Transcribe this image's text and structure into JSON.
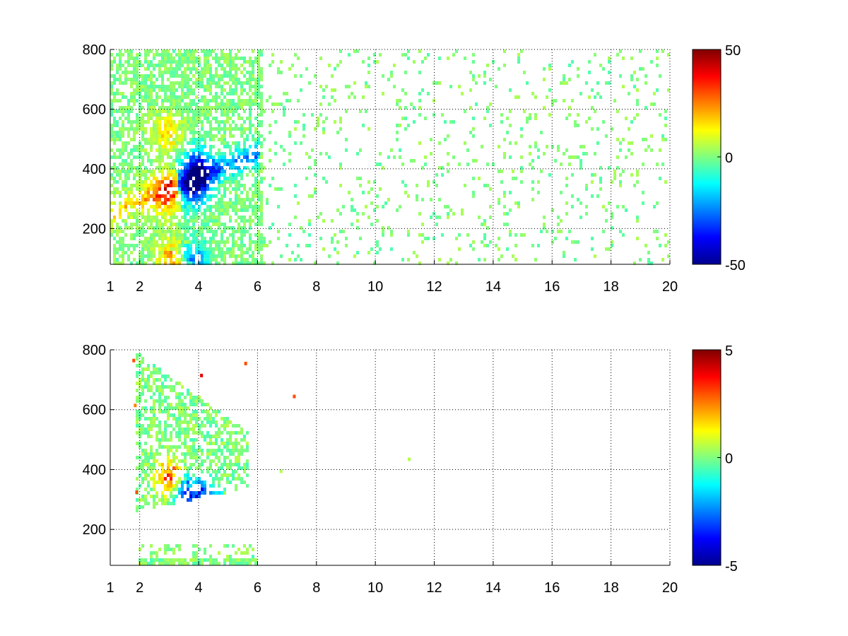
{
  "chart_data": [
    {
      "type": "heatmap",
      "title": "",
      "xlabel": "",
      "ylabel": "",
      "xlim": [
        1,
        20
      ],
      "ylim": [
        80,
        800
      ],
      "x_ticks": [
        "1",
        "2",
        "4",
        "6",
        "8",
        "10",
        "12",
        "14",
        "16",
        "18",
        "20"
      ],
      "x_tick_values": [
        1,
        2,
        4,
        6,
        8,
        10,
        12,
        14,
        16,
        18,
        20
      ],
      "y_ticks": [
        "200",
        "400",
        "600",
        "800"
      ],
      "y_tick_values": [
        200,
        400,
        600,
        800
      ],
      "grid": true,
      "colormap": "jet",
      "colorbar": {
        "min": -50,
        "max": 50,
        "ticks": [
          "50",
          "0",
          "-50"
        ],
        "tick_values": [
          50,
          0,
          -50
        ]
      },
      "features": [
        {
          "x": 3.0,
          "y": 330,
          "value": 40
        },
        {
          "x": 2.9,
          "y": 520,
          "value": 18
        },
        {
          "x": 3.7,
          "y": 340,
          "value": -45
        },
        {
          "x": 3.9,
          "y": 410,
          "value": -35
        },
        {
          "x": 3.2,
          "y": 90,
          "value": 50
        },
        {
          "x": 3.6,
          "y": 90,
          "value": -50
        }
      ]
    },
    {
      "type": "heatmap",
      "title": "",
      "xlabel": "",
      "ylabel": "",
      "xlim": [
        1,
        20
      ],
      "ylim": [
        80,
        800
      ],
      "x_ticks": [
        "1",
        "2",
        "4",
        "6",
        "8",
        "10",
        "12",
        "14",
        "16",
        "18",
        "20"
      ],
      "x_tick_values": [
        1,
        2,
        4,
        6,
        8,
        10,
        12,
        14,
        16,
        18,
        20
      ],
      "y_ticks": [
        "200",
        "400",
        "600",
        "800"
      ],
      "y_tick_values": [
        200,
        400,
        600,
        800
      ],
      "grid": true,
      "colormap": "jet",
      "colorbar": {
        "min": -5,
        "max": 5,
        "ticks": [
          "5",
          "0",
          "-5"
        ],
        "tick_values": [
          5,
          0,
          -5
        ]
      },
      "features": [
        {
          "x": 3.0,
          "y": 380,
          "value": 4
        },
        {
          "x": 3.5,
          "y": 330,
          "value": -4
        },
        {
          "x": 4.2,
          "y": 300,
          "value": -4.5
        },
        {
          "x": 7.2,
          "y": 650,
          "value": 3
        }
      ]
    }
  ]
}
